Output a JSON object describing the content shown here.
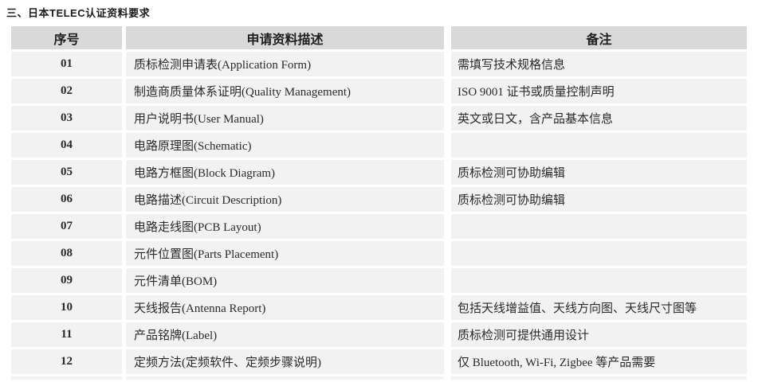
{
  "title": "三、日本TELEC认证资料要求",
  "table": {
    "headers": [
      "序号",
      "申请资料描述",
      "备注"
    ],
    "rows": [
      {
        "no": "01",
        "desc": "质标检测申请表(Application Form)",
        "note": "需填写技术规格信息"
      },
      {
        "no": "02",
        "desc": "制造商质量体系证明(Quality Management)",
        "note": "ISO 9001 证书或质量控制声明"
      },
      {
        "no": "03",
        "desc": "用户说明书(User Manual)",
        "note": "英文或日文，含产品基本信息"
      },
      {
        "no": "04",
        "desc": "电路原理图(Schematic)",
        "note": ""
      },
      {
        "no": "05",
        "desc": "电路方框图(Block Diagram)",
        "note": "质标检测可协助编辑"
      },
      {
        "no": "06",
        "desc": "电路描述(Circuit Description)",
        "note": "质标检测可协助编辑"
      },
      {
        "no": "07",
        "desc": "电路走线图(PCB Layout)",
        "note": ""
      },
      {
        "no": "08",
        "desc": "元件位置图(Parts Placement)",
        "note": ""
      },
      {
        "no": "09",
        "desc": "元件清单(BOM)",
        "note": ""
      },
      {
        "no": "10",
        "desc": "天线报告(Antenna Report)",
        "note": "包括天线增益值、天线方向图、天线尺寸图等"
      },
      {
        "no": "11",
        "desc": "产品铭牌(Label)",
        "note": "质标检测可提供通用设计"
      },
      {
        "no": "12",
        "desc": "定频方法(定频软件、定频步骤说明)",
        "note": "仅 Bluetooth, Wi-Fi, Zigbee 等产品需要"
      }
    ]
  },
  "colors": {
    "header_bg": "#d9d9d9",
    "row_bg": "#f2f2f2",
    "text": "#1f1f1f"
  }
}
